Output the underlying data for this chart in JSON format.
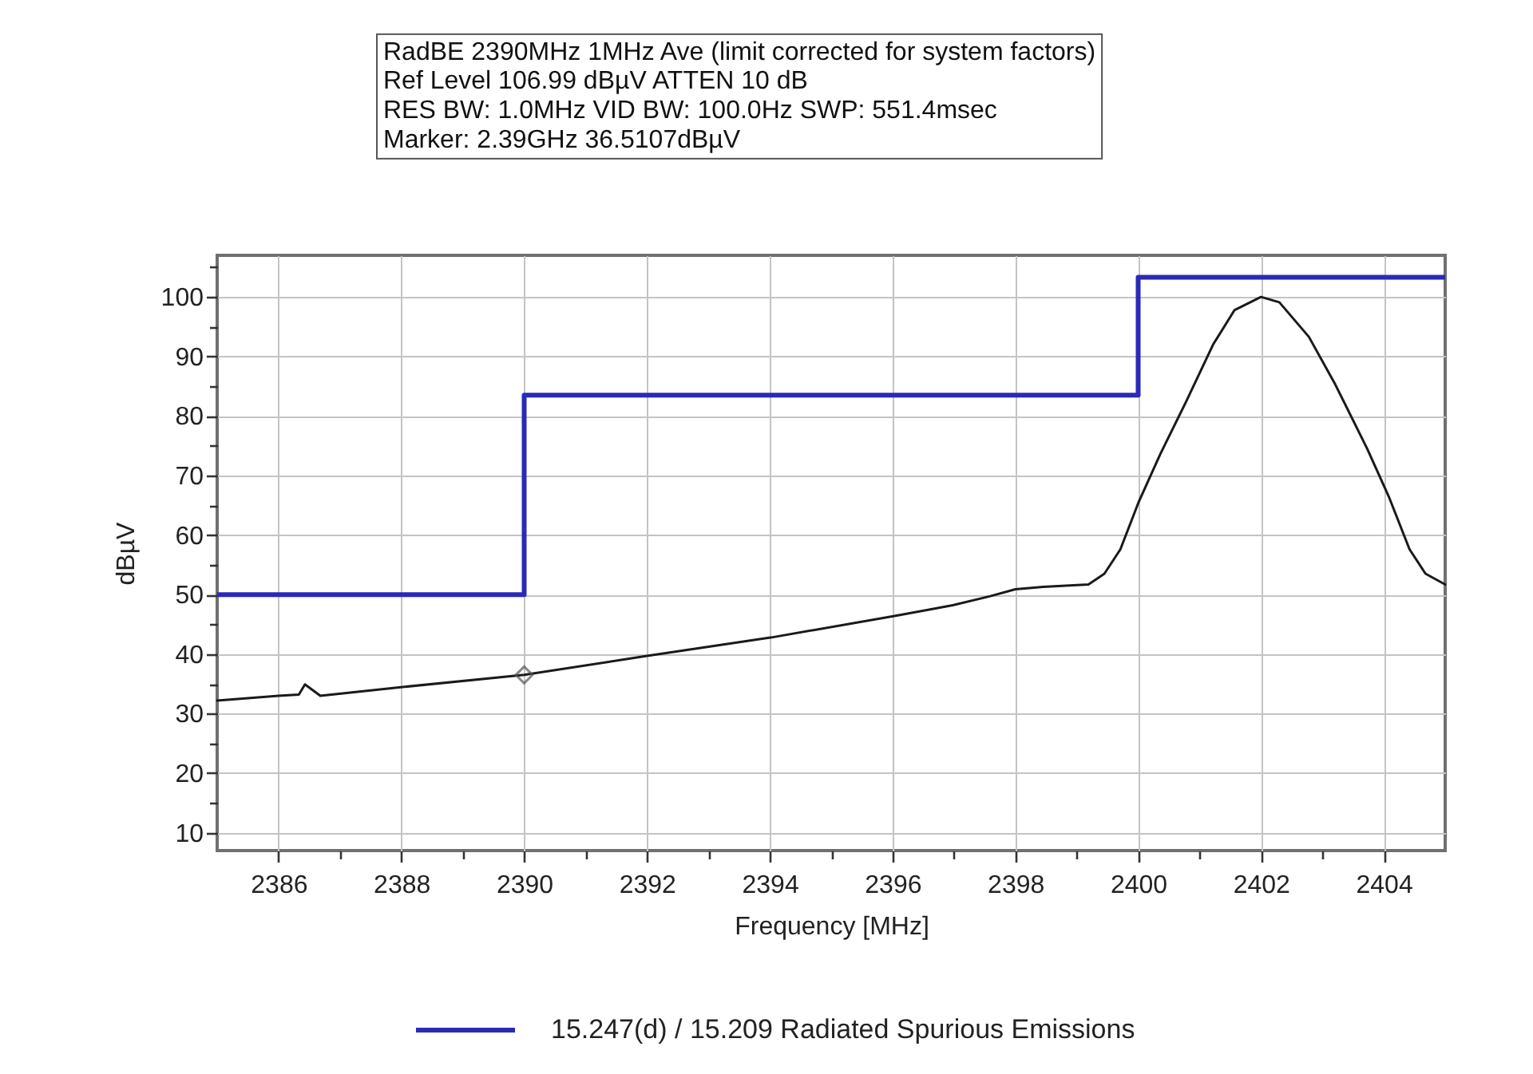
{
  "chart_data": {
    "type": "line",
    "title": "RadBE 2390MHz 1MHz Ave (limit corrected for system factors)",
    "subtitle": "Ref Level 106.99 dBµV    ATTEN 10 dB\nRES BW: 1.0MHz  VID BW: 100.0Hz  SWP: 551.4msec\nMarker: 2.39GHz  36.5107dBµV",
    "xlabel": "Frequency [MHz]",
    "ylabel": "dBµV",
    "xlim": [
      2385,
      2405
    ],
    "ylim": [
      6.99,
      106.99
    ],
    "xticks": [
      2386,
      {
        "value": 2387,
        "label": null
      },
      2388,
      {
        "value": 2389,
        "label": null
      },
      2390,
      {
        "value": 2391,
        "label": null
      },
      2392,
      {
        "value": 2393,
        "label": null
      },
      2394,
      {
        "value": 2395,
        "label": null
      },
      2396,
      {
        "value": 2397,
        "label": null
      },
      2398,
      {
        "value": 2399,
        "label": null
      },
      2400,
      {
        "value": 2401,
        "label": null
      },
      2402,
      {
        "value": 2403,
        "label": null
      },
      2404
    ],
    "yticks": [
      10,
      {
        "value": 15,
        "label": null
      },
      20,
      {
        "value": 25,
        "label": null
      },
      30,
      {
        "value": 35,
        "label": null
      },
      40,
      {
        "value": 45,
        "label": null
      },
      50,
      {
        "value": 55,
        "label": null
      },
      60,
      {
        "value": 65,
        "label": null
      },
      70,
      {
        "value": 75,
        "label": null
      },
      80,
      {
        "value": 85,
        "label": null
      },
      90,
      {
        "value": 95,
        "label": null
      },
      100,
      {
        "value": 105,
        "label": null
      }
    ],
    "grid": true,
    "legend": "bottom",
    "series": [
      {
        "name": "15.247(d) / 15.209 Radiated Spurious Emissions",
        "type": "step",
        "color": "#2a2ab8",
        "x": [
          2385,
          2390,
          2400,
          2405
        ],
        "values": [
          50,
          83.5,
          103.3,
          103.3
        ]
      },
      {
        "type": "line",
        "color": "#1a1a1a",
        "x": [
          2385,
          2386,
          2386.33,
          2386.43,
          2386.68,
          2388.05,
          2390,
          2392,
          2394.03,
          2396.03,
          2396.98,
          2397.58,
          2398,
          2398.45,
          2399.19,
          2399.45,
          2399.71,
          2400.01,
          2400.36,
          2400.79,
          2401.22,
          2401.57,
          2402,
          2402.3,
          2402.78,
          2403.21,
          2403.73,
          2404.08,
          2404.42,
          2404.68,
          2405
        ],
        "values": [
          32.2,
          33,
          33.2,
          34.9,
          33,
          34.5,
          36.5,
          39.7,
          42.8,
          46.4,
          48.2,
          49.7,
          50.9,
          51.3,
          51.7,
          53.5,
          57.6,
          65.6,
          73.6,
          82.6,
          92,
          97.8,
          100,
          99.1,
          93.3,
          85.3,
          74.5,
          66.5,
          57.6,
          53.5,
          51.7
        ]
      },
      {
        "type": "scatter",
        "marker": "diamond",
        "color": "#555555",
        "x": [
          2390
        ],
        "values": [
          36.5
        ]
      }
    ]
  }
}
